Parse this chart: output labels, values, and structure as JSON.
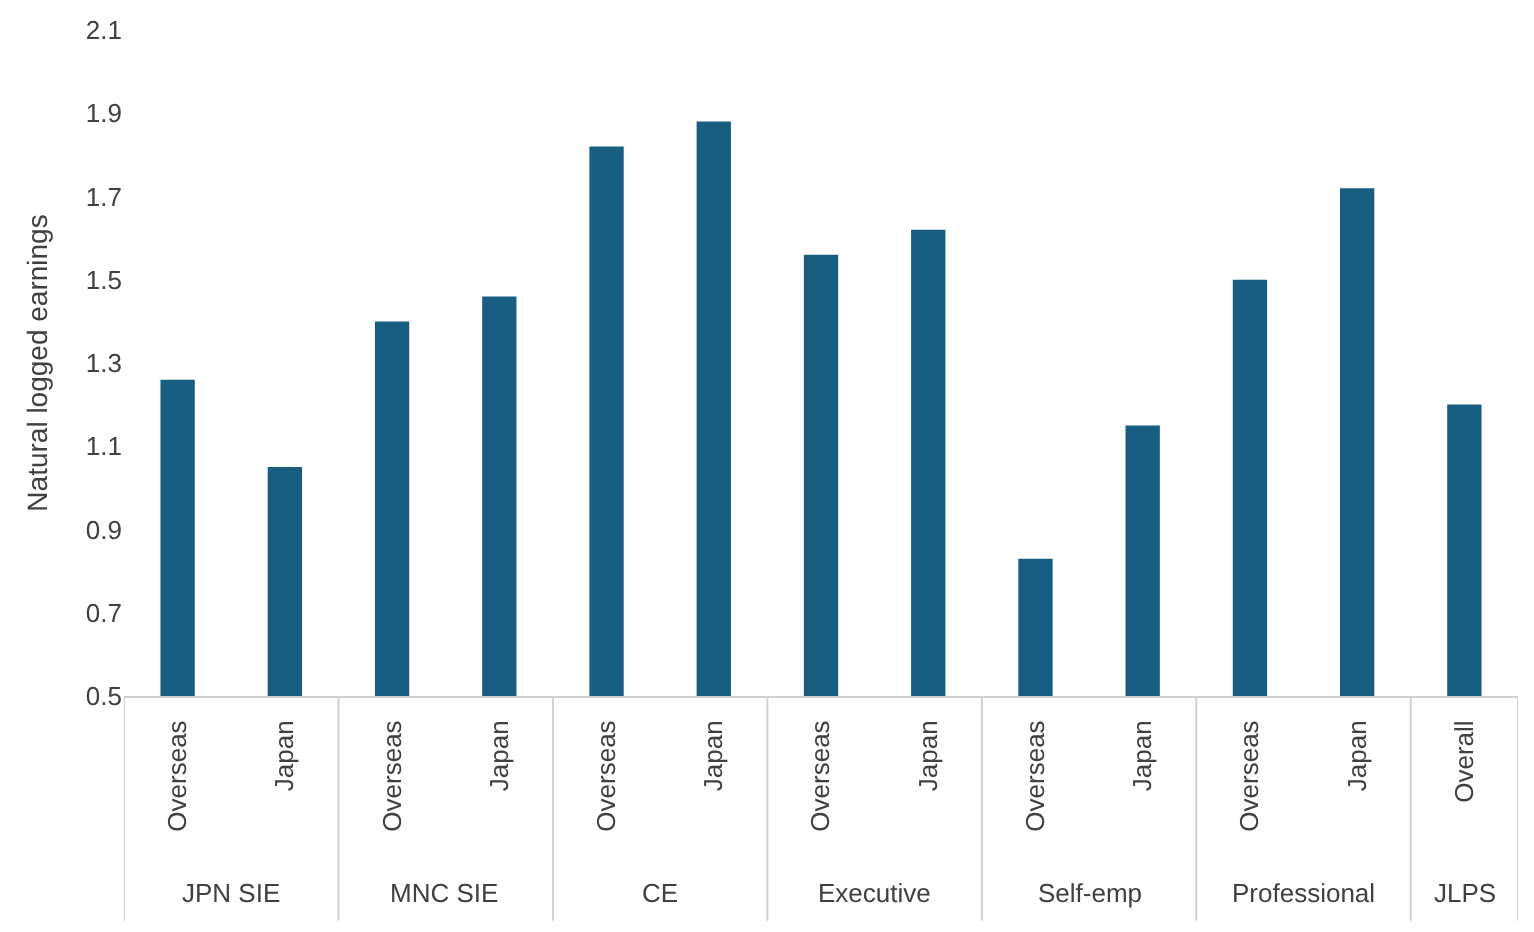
{
  "chart_data": {
    "type": "bar",
    "ylabel": "Natural logged earnings",
    "categories": [
      "Overseas",
      "Japan",
      "Overseas",
      "Japan",
      "Overseas",
      "Japan",
      "Overseas",
      "Japan",
      "Overseas",
      "Japan",
      "Overseas",
      "Japan",
      "Overall"
    ],
    "values": [
      1.26,
      1.05,
      1.4,
      1.46,
      1.82,
      1.88,
      1.56,
      1.62,
      0.83,
      1.15,
      1.5,
      1.72,
      1.2
    ],
    "color": "#175e82",
    "annotations": [
      "JPN SIE",
      "MNC SIE",
      "CE",
      "Executive",
      "Self-emp",
      "Professional",
      "JLPS"
    ],
    "ylim": [
      0.5,
      2.1
    ],
    "yticks": [
      0.5,
      0.7,
      0.9,
      1.1,
      1.3,
      1.5,
      1.7,
      1.9,
      2.1
    ]
  }
}
